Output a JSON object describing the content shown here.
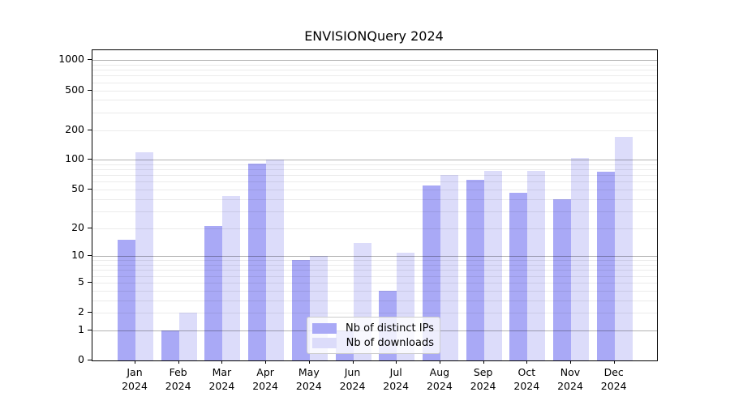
{
  "title": "ENVISIONQuery 2024",
  "colors": {
    "distinct_ips_bar": "#a9a9f6",
    "downloads_bar": "#dcdcfa",
    "major_gridline": "#b3b3b3",
    "minor_gridline": "#ebebeb",
    "axis": "#000000",
    "legend_border": "#cccccc",
    "background": "#ffffff"
  },
  "legend": {
    "position": "lower center",
    "items": [
      "Nb of distinct IPs",
      "Nb of downloads"
    ]
  },
  "chart_data": {
    "type": "bar",
    "title": "ENVISIONQuery 2024",
    "xlabel": "",
    "ylabel": "",
    "grid": "on",
    "scale": "log1p",
    "legend_position": "lower center",
    "categories": [
      "Jan 2024",
      "Feb 2024",
      "Mar 2024",
      "Apr 2024",
      "May 2024",
      "Jun 2024",
      "Jul 2024",
      "Aug 2024",
      "Sep 2024",
      "Oct 2024",
      "Nov 2024",
      "Dec 2024"
    ],
    "series": [
      {
        "name": "Nb of distinct IPs",
        "color": "#a9a9f6",
        "values": [
          15,
          1,
          21,
          92,
          9,
          1,
          4,
          55,
          63,
          46,
          40,
          76
        ]
      },
      {
        "name": "Nb of downloads",
        "color": "#dcdcfa",
        "values": [
          120,
          2,
          43,
          100,
          10,
          14,
          11,
          70,
          77,
          77,
          105,
          172
        ]
      }
    ],
    "yticks": [
      0,
      1,
      2,
      5,
      10,
      20,
      50,
      100,
      200,
      500,
      1000
    ],
    "ytick_labels": [
      "0",
      "1",
      "2",
      "5",
      "10",
      "20",
      "50",
      "100",
      "200",
      "500",
      "1000"
    ],
    "major_grid_values": [
      1,
      10,
      100,
      1000
    ],
    "ylim": [
      0,
      1260
    ]
  }
}
